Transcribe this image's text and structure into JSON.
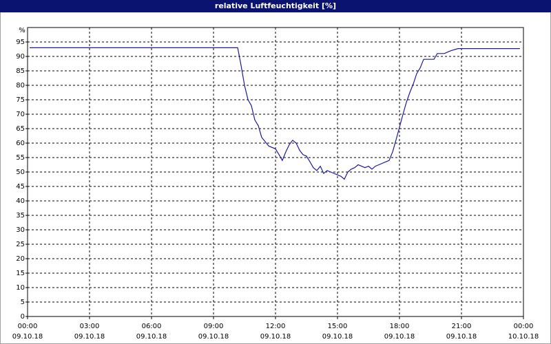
{
  "chart_data": {
    "type": "line",
    "title": "relative Luftfeuchtigkeit [%]",
    "y_label": "%",
    "color": "#1a1aa0",
    "grid": true,
    "xlim": [
      0,
      24
    ],
    "ylim": [
      0,
      100
    ],
    "yticks": [
      0,
      5,
      10,
      15,
      20,
      25,
      30,
      35,
      40,
      45,
      50,
      55,
      60,
      65,
      70,
      75,
      80,
      85,
      90,
      95
    ],
    "xticks": [
      {
        "value": 0,
        "label": "00:00"
      },
      {
        "value": 3,
        "label": "03:00"
      },
      {
        "value": 6,
        "label": "06:00"
      },
      {
        "value": 9,
        "label": "09:00"
      },
      {
        "value": 12,
        "label": "12:00"
      },
      {
        "value": 15,
        "label": "15:00"
      },
      {
        "value": 18,
        "label": "18:00"
      },
      {
        "value": 21,
        "label": "21:00"
      },
      {
        "value": 24,
        "label": "00:00"
      }
    ],
    "xtick_dates": [
      "09.10.18",
      "09.10.18",
      "09.10.18",
      "09.10.18",
      "09.10.18",
      "09.10.18",
      "09.10.18",
      "09.10.18",
      "10.10.18"
    ],
    "x": [
      0.1,
      10.17,
      10.33,
      10.5,
      10.67,
      10.83,
      11.0,
      11.17,
      11.33,
      11.67,
      12.0,
      12.17,
      12.33,
      12.5,
      12.67,
      12.83,
      13.0,
      13.17,
      13.33,
      13.5,
      13.67,
      13.83,
      14.0,
      14.17,
      14.33,
      14.5,
      14.67,
      15.0,
      15.17,
      15.33,
      15.5,
      15.67,
      15.83,
      16.0,
      16.17,
      16.33,
      16.5,
      16.67,
      16.83,
      17.0,
      17.33,
      17.5,
      17.67,
      17.83,
      18.0,
      18.17,
      18.33,
      18.5,
      18.67,
      18.83,
      19.0,
      19.17,
      19.33,
      19.67,
      19.83,
      20.17,
      20.33,
      20.5,
      20.83,
      23.83
    ],
    "values": [
      93,
      93,
      87,
      80,
      75,
      73,
      68,
      66,
      62,
      59,
      58,
      56,
      54,
      57,
      59.5,
      61,
      60,
      57.5,
      56,
      55.5,
      53.5,
      51.5,
      50.5,
      52,
      49.5,
      50.5,
      50,
      49,
      48.5,
      47.5,
      50,
      51,
      51.5,
      52.5,
      52,
      51.5,
      52,
      51,
      52,
      52.5,
      53.5,
      54,
      57,
      61,
      65.5,
      70,
      74,
      77.5,
      80.5,
      84,
      86,
      89,
      89,
      89,
      91,
      91,
      91.5,
      92,
      92.7,
      92.7
    ]
  }
}
